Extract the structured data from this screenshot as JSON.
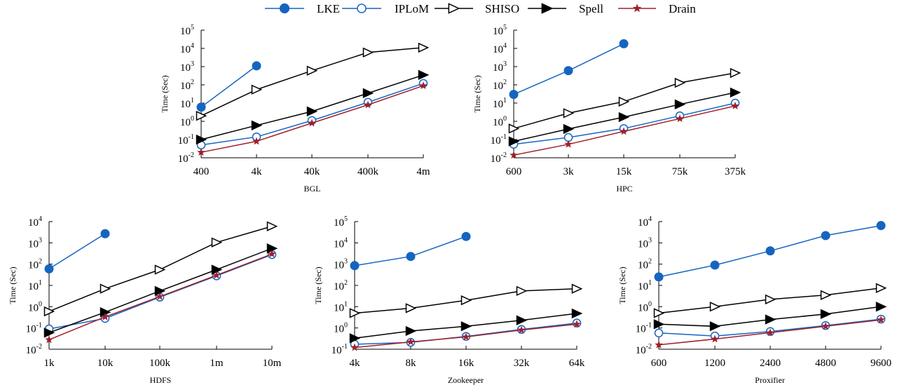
{
  "legend": [
    {
      "name": "LKE",
      "color": "#1565c0",
      "marker": "filled-circle"
    },
    {
      "name": "IPLoM",
      "color": "#1565c0",
      "marker": "open-circle"
    },
    {
      "name": "SHISO",
      "color": "#000000",
      "marker": "open-triangle"
    },
    {
      "name": "Spell",
      "color": "#000000",
      "marker": "filled-triangle"
    },
    {
      "name": "Drain",
      "color": "#a0202a",
      "marker": "star"
    }
  ],
  "chart_data": [
    {
      "type": "line",
      "title": "",
      "xlabel": "BGL",
      "ylabel": "Time (Sec)",
      "categories": [
        "400",
        "4k",
        "40k",
        "400k",
        "4m"
      ],
      "yscale": "log",
      "ylim": [
        0.01,
        100000
      ],
      "yticks": [
        {
          "b": "10",
          "e": "-2"
        },
        {
          "b": "10",
          "e": "-1"
        },
        {
          "b": "10",
          "e": "0"
        },
        {
          "b": "10",
          "e": "1"
        },
        {
          "b": "10",
          "e": "2"
        },
        {
          "b": "10",
          "e": "3"
        },
        {
          "b": "10",
          "e": "4"
        },
        {
          "b": "10",
          "e": "5"
        }
      ],
      "series": [
        {
          "name": "LKE",
          "values": [
            6,
            1100,
            null,
            null,
            null
          ]
        },
        {
          "name": "IPLoM",
          "values": [
            0.05,
            0.14,
            1.1,
            11,
            120
          ]
        },
        {
          "name": "SHISO",
          "values": [
            2,
            55,
            600,
            6000,
            11000
          ]
        },
        {
          "name": "Spell",
          "values": [
            0.1,
            0.6,
            3.5,
            35,
            350
          ]
        },
        {
          "name": "Drain",
          "values": [
            0.02,
            0.08,
            0.8,
            8,
            90
          ]
        }
      ]
    },
    {
      "type": "line",
      "title": "",
      "xlabel": "HPC",
      "ylabel": "Time (Sec)",
      "categories": [
        "600",
        "3k",
        "15k",
        "75k",
        "375k"
      ],
      "yscale": "log",
      "ylim": [
        0.01,
        100000
      ],
      "yticks": [
        {
          "b": "10",
          "e": "-2"
        },
        {
          "b": "10",
          "e": "-1"
        },
        {
          "b": "10",
          "e": "0"
        },
        {
          "b": "10",
          "e": "1"
        },
        {
          "b": "10",
          "e": "2"
        },
        {
          "b": "10",
          "e": "3"
        },
        {
          "b": "10",
          "e": "4"
        },
        {
          "b": "10",
          "e": "5"
        }
      ],
      "series": [
        {
          "name": "LKE",
          "values": [
            30,
            600,
            18000,
            null,
            null
          ]
        },
        {
          "name": "IPLoM",
          "values": [
            0.055,
            0.13,
            0.4,
            2,
            10
          ]
        },
        {
          "name": "SHISO",
          "values": [
            0.4,
            2.8,
            12,
            130,
            450
          ]
        },
        {
          "name": "Spell",
          "values": [
            0.08,
            0.38,
            1.7,
            8.5,
            38
          ]
        },
        {
          "name": "Drain",
          "values": [
            0.014,
            0.055,
            0.28,
            1.4,
            7
          ]
        }
      ]
    },
    {
      "type": "line",
      "title": "",
      "xlabel": "HDFS",
      "ylabel": "Time (Sec)",
      "categories": [
        "1k",
        "10k",
        "100k",
        "1m",
        "10m"
      ],
      "yscale": "log",
      "ylim": [
        0.01,
        10000
      ],
      "yticks": [
        {
          "b": "10",
          "e": "-2"
        },
        {
          "b": "10",
          "e": "-1"
        },
        {
          "b": "10",
          "e": "0"
        },
        {
          "b": "10",
          "e": "1"
        },
        {
          "b": "10",
          "e": "2"
        },
        {
          "b": "10",
          "e": "3"
        },
        {
          "b": "10",
          "e": "4"
        }
      ],
      "series": [
        {
          "name": "LKE",
          "values": [
            60,
            2700,
            null,
            null,
            null
          ]
        },
        {
          "name": "IPLoM",
          "values": [
            0.09,
            0.28,
            2.8,
            28,
            280
          ]
        },
        {
          "name": "SHISO",
          "values": [
            0.6,
            7,
            55,
            1050,
            6000
          ]
        },
        {
          "name": "Spell",
          "values": [
            0.06,
            0.55,
            5.5,
            55,
            550
          ]
        },
        {
          "name": "Drain",
          "values": [
            0.028,
            0.33,
            3,
            30,
            300
          ]
        }
      ]
    },
    {
      "type": "line",
      "title": "",
      "xlabel": "Zookeeper",
      "ylabel": "Time (Sec)",
      "categories": [
        "4k",
        "8k",
        "16k",
        "32k",
        "64k"
      ],
      "yscale": "log",
      "ylim": [
        0.1,
        100000
      ],
      "yticks": [
        {
          "b": "10",
          "e": "-1"
        },
        {
          "b": "10",
          "e": "0"
        },
        {
          "b": "10",
          "e": "1"
        },
        {
          "b": "10",
          "e": "2"
        },
        {
          "b": "10",
          "e": "3"
        },
        {
          "b": "10",
          "e": "4"
        },
        {
          "b": "10",
          "e": "5"
        }
      ],
      "series": [
        {
          "name": "LKE",
          "values": [
            850,
            2300,
            20000,
            null,
            null
          ]
        },
        {
          "name": "IPLoM",
          "values": [
            0.17,
            0.21,
            0.4,
            0.85,
            1.7
          ]
        },
        {
          "name": "SHISO",
          "values": [
            5,
            8.5,
            20,
            55,
            70
          ]
        },
        {
          "name": "Spell",
          "values": [
            0.33,
            0.72,
            1.2,
            2.3,
            4.8
          ]
        },
        {
          "name": "Drain",
          "values": [
            0.12,
            0.22,
            0.38,
            0.8,
            1.5
          ]
        }
      ]
    },
    {
      "type": "line",
      "title": "",
      "xlabel": "Proxifier",
      "ylabel": "Time (Sec)",
      "categories": [
        "600",
        "1200",
        "2400",
        "4800",
        "9600"
      ],
      "yscale": "log",
      "ylim": [
        0.01,
        10000
      ],
      "yticks": [
        {
          "b": "10",
          "e": "-2"
        },
        {
          "b": "10",
          "e": "-1"
        },
        {
          "b": "10",
          "e": "0"
        },
        {
          "b": "10",
          "e": "1"
        },
        {
          "b": "10",
          "e": "2"
        },
        {
          "b": "10",
          "e": "3"
        },
        {
          "b": "10",
          "e": "4"
        }
      ],
      "series": [
        {
          "name": "LKE",
          "values": [
            25,
            90,
            420,
            2200,
            6500
          ]
        },
        {
          "name": "IPLoM",
          "values": [
            0.058,
            0.042,
            0.068,
            0.13,
            0.26
          ]
        },
        {
          "name": "SHISO",
          "values": [
            0.5,
            1,
            2.2,
            3.5,
            7.5
          ]
        },
        {
          "name": "Spell",
          "values": [
            0.15,
            0.12,
            0.25,
            0.45,
            1
          ]
        },
        {
          "name": "Drain",
          "values": [
            0.016,
            0.03,
            0.06,
            0.12,
            0.24
          ]
        }
      ]
    }
  ]
}
